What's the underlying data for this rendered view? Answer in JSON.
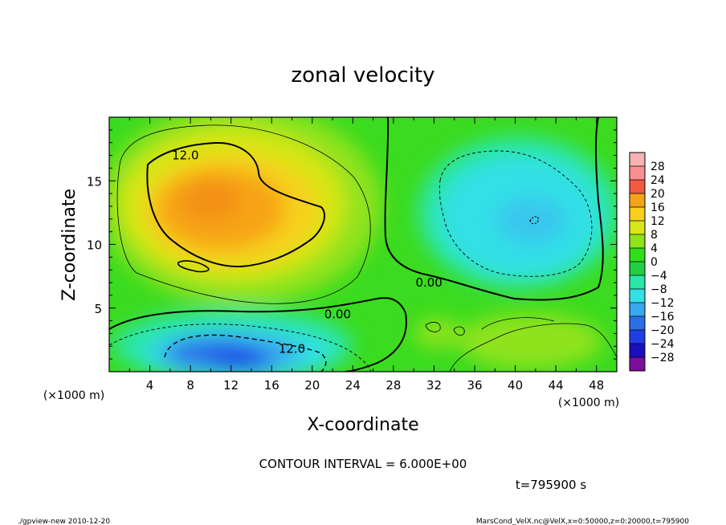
{
  "chart_data": {
    "type": "heatmap",
    "title": "zonal velocity",
    "xlabel": "X-coordinate",
    "ylabel": "Z-coordinate",
    "x_unit_label": "(×1000 m)",
    "y_unit_label": "(×1000 m)",
    "xlim": [
      0,
      50
    ],
    "ylim": [
      0,
      20
    ],
    "x_ticks": [
      4,
      8,
      12,
      16,
      20,
      24,
      28,
      32,
      36,
      40,
      44,
      48
    ],
    "y_ticks": [
      5,
      10,
      15
    ],
    "colorbar": {
      "levels": [
        -28,
        -24,
        -20,
        -16,
        -12,
        -8,
        -4,
        0,
        4,
        8,
        12,
        16,
        20,
        24,
        28
      ],
      "tick_labels": [
        "28",
        "24",
        "20",
        "16",
        "12",
        "8",
        "4",
        "0",
        "−4",
        "−8",
        "−12",
        "−16",
        "−20",
        "−24",
        "−28"
      ],
      "colors": [
        "#7b0f9b",
        "#1a0fbf",
        "#1f3fe6",
        "#2a6fe8",
        "#39a7ee",
        "#32e0e6",
        "#2ae6a8",
        "#23cf42",
        "#2fde17",
        "#8fe31a",
        "#d7e617",
        "#f7cf1f",
        "#f6a417",
        "#f25a3f",
        "#f79090",
        "#f5b3b3"
      ]
    },
    "field_features": [
      {
        "name": "upper-left maximum",
        "x": 12,
        "z": 13,
        "value": 17
      },
      {
        "name": "lower-left minimum",
        "x": 13,
        "z": 1.5,
        "value": -18
      },
      {
        "name": "upper-right minimum",
        "x": 41,
        "z": 12,
        "value": -11
      },
      {
        "name": "lower-right weak positive",
        "x": 42,
        "z": 2,
        "value": 5
      }
    ],
    "contour_labels": [
      {
        "text": "12.0",
        "x": 7.5,
        "z": 17.0
      },
      {
        "text": "0.00",
        "x": 22.5,
        "z": 4.5
      },
      {
        "text": "0.00",
        "x": 31.5,
        "z": 7.0
      },
      {
        "text": "12.0",
        "x": 18.0,
        "z": 1.8
      }
    ],
    "contour_interval_label": "CONTOUR INTERVAL = 6.000E+00",
    "time_label": "t=795900 s",
    "footer_left": "./gpview-new  2010-12-20",
    "footer_right": "MarsCond_VelX.nc@VelX,x=0:50000,z=0:20000,t=795900"
  }
}
